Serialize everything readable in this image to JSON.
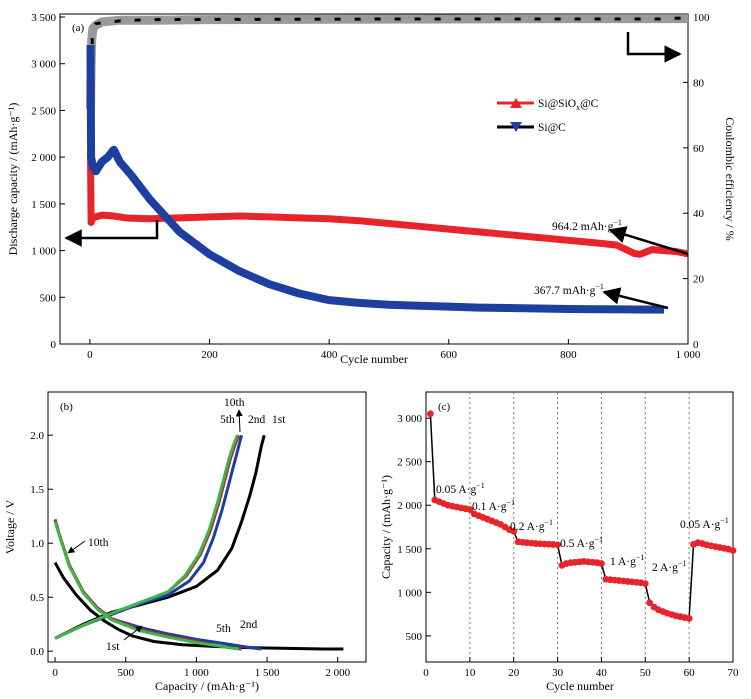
{
  "chart_data": [
    {
      "id": "a",
      "type": "line",
      "panel_label": "(a)",
      "xlabel": "Cycle number",
      "ylabel": "Discharge capacity / (mAh·g⁻¹)",
      "y2label": "Coulombic efficiency / %",
      "xlim": [
        -50,
        1000
      ],
      "ylim": [
        0,
        3500
      ],
      "y2lim": [
        0,
        100
      ],
      "xticks": [
        0,
        200,
        400,
        600,
        800,
        1000
      ],
      "xtick_labels": [
        "0",
        "200",
        "400",
        "600",
        "800",
        "1 000"
      ],
      "yticks": [
        0,
        500,
        1000,
        1500,
        2000,
        2500,
        3000,
        3500
      ],
      "ytick_labels": [
        "0",
        "500",
        "1 000",
        "1 500",
        "2 000",
        "2 500",
        "3 000",
        "3 500"
      ],
      "y2ticks": [
        0,
        20,
        40,
        60,
        80,
        100
      ],
      "y2tick_labels": [
        "0",
        "20",
        "40",
        "60",
        "80",
        "100"
      ],
      "legend": {
        "position": "right",
        "entries": [
          {
            "label_main": "Si@SiO",
            "label_sub": "x",
            "label_tail": "@C",
            "color": "#e8242b",
            "marker": "triangle-up"
          },
          {
            "label_main": "Si@C",
            "label_sub": "",
            "label_tail": "",
            "color": "#1f3fa0",
            "marker": "triangle-down"
          }
        ]
      },
      "series": [
        {
          "name": "Si@SiOx@C",
          "color": "#e8242b",
          "x": [
            1,
            2,
            5,
            10,
            20,
            40,
            60,
            100,
            150,
            200,
            250,
            300,
            350,
            400,
            450,
            500,
            550,
            600,
            650,
            700,
            750,
            800,
            850,
            880,
            900,
            910,
            920,
            940,
            960,
            980,
            1000
          ],
          "y": [
            2050,
            1300,
            1350,
            1360,
            1380,
            1370,
            1350,
            1340,
            1350,
            1360,
            1370,
            1360,
            1350,
            1340,
            1320,
            1290,
            1260,
            1230,
            1200,
            1170,
            1140,
            1110,
            1080,
            1060,
            1000,
            970,
            960,
            1010,
            1000,
            990,
            964
          ]
        },
        {
          "name": "Si@C",
          "color": "#1f3fa0",
          "x": [
            1,
            2,
            5,
            10,
            20,
            30,
            40,
            50,
            70,
            100,
            150,
            200,
            250,
            300,
            350,
            400,
            450,
            500,
            550,
            600,
            650,
            700,
            750,
            800,
            850,
            900,
            960
          ],
          "y": [
            3200,
            2000,
            1900,
            1850,
            1950,
            2000,
            2080,
            1950,
            1800,
            1550,
            1200,
            960,
            780,
            640,
            540,
            470,
            440,
            420,
            410,
            400,
            390,
            385,
            380,
            375,
            372,
            370,
            368
          ]
        },
        {
          "name": "Coulombic efficiency",
          "color": "#9a9a9a",
          "axis": "right",
          "x": [
            1,
            2,
            3,
            5,
            10,
            20,
            50,
            100,
            200,
            400,
            600,
            800,
            1000
          ],
          "y": [
            72,
            86,
            93,
            96.5,
            97.5,
            98.5,
            99,
            99,
            99.2,
            99.3,
            99.4,
            99.5,
            99.5
          ]
        }
      ],
      "ce_black_x": [
        1,
        4,
        10,
        50,
        100,
        300,
        500,
        700,
        900,
        960,
        980,
        1000
      ],
      "ce_black_y": [
        55,
        94,
        98,
        98.8,
        99.2,
        99.3,
        99.4,
        99.4,
        99.4,
        99.4,
        99.6,
        99.8
      ],
      "annotations": [
        {
          "text": "964.2 mAh·g",
          "sup": "−1"
        },
        {
          "text": "367.7 mAh·g",
          "sup": "−1"
        }
      ]
    },
    {
      "id": "b",
      "type": "line",
      "panel_label": "(b)",
      "xlabel": "Capacity / (mAh·g⁻¹)",
      "ylabel": "Voltage / V",
      "xlim": [
        -50,
        2200
      ],
      "ylim": [
        -0.1,
        2.4
      ],
      "xticks": [
        0,
        500,
        1000,
        1500,
        2000
      ],
      "xtick_labels": [
        "0",
        "500",
        "1 000",
        "1 500",
        "2 000"
      ],
      "yticks": [
        0.0,
        0.5,
        1.0,
        1.5,
        2.0
      ],
      "ytick_labels": [
        "0.0",
        "0.5",
        "1.0",
        "1.5",
        "2.0"
      ],
      "series": [
        {
          "name": "1st",
          "color": "#000000",
          "discharge_x": [
            0,
            60,
            150,
            250,
            350,
            450,
            550,
            700,
            900,
            1100,
            1300,
            1500,
            1700,
            1900,
            2040
          ],
          "discharge_y": [
            0.82,
            0.68,
            0.52,
            0.38,
            0.28,
            0.2,
            0.14,
            0.09,
            0.06,
            0.045,
            0.035,
            0.03,
            0.025,
            0.02,
            0.02
          ],
          "charge_x": [
            0,
            200,
            400,
            600,
            800,
            1000,
            1150,
            1250,
            1320,
            1380,
            1420,
            1460,
            1480
          ],
          "charge_y": [
            0.12,
            0.25,
            0.36,
            0.43,
            0.5,
            0.6,
            0.75,
            0.95,
            1.2,
            1.45,
            1.65,
            1.9,
            2.0
          ]
        },
        {
          "name": "2nd",
          "color": "#1f3fa0",
          "discharge_x": [
            0,
            30,
            100,
            200,
            300,
            400,
            600,
            800,
            1000,
            1200,
            1300,
            1400,
            1460
          ],
          "discharge_y": [
            1.22,
            1.08,
            0.8,
            0.55,
            0.4,
            0.3,
            0.22,
            0.16,
            0.11,
            0.07,
            0.05,
            0.03,
            0.02
          ],
          "charge_x": [
            0,
            200,
            400,
            600,
            800,
            950,
            1050,
            1120,
            1180,
            1230,
            1260,
            1290,
            1320
          ],
          "charge_y": [
            0.12,
            0.24,
            0.34,
            0.44,
            0.52,
            0.65,
            0.82,
            1.05,
            1.3,
            1.55,
            1.7,
            1.85,
            2.0
          ]
        },
        {
          "name": "5th",
          "color": "#b2282b",
          "discharge_x": [
            0,
            30,
            100,
            200,
            300,
            400,
            600,
            800,
            1000,
            1150,
            1250,
            1320
          ],
          "discharge_y": [
            1.22,
            1.08,
            0.8,
            0.55,
            0.4,
            0.3,
            0.2,
            0.14,
            0.09,
            0.05,
            0.03,
            0.02
          ],
          "charge_x": [
            0,
            200,
            400,
            600,
            800,
            930,
            1030,
            1100,
            1160,
            1200,
            1240,
            1270,
            1300
          ],
          "charge_y": [
            0.12,
            0.24,
            0.35,
            0.45,
            0.55,
            0.7,
            0.9,
            1.12,
            1.38,
            1.58,
            1.78,
            1.9,
            2.0
          ]
        },
        {
          "name": "10th",
          "color": "#3cb54a",
          "discharge_x": [
            0,
            30,
            100,
            200,
            300,
            400,
            600,
            800,
            1000,
            1150,
            1250,
            1300
          ],
          "discharge_y": [
            1.2,
            1.07,
            0.79,
            0.54,
            0.39,
            0.29,
            0.19,
            0.13,
            0.08,
            0.05,
            0.03,
            0.02
          ],
          "charge_x": [
            0,
            200,
            400,
            600,
            800,
            920,
            1020,
            1090,
            1150,
            1190,
            1230,
            1260,
            1290
          ],
          "charge_y": [
            0.12,
            0.24,
            0.35,
            0.45,
            0.55,
            0.7,
            0.9,
            1.12,
            1.38,
            1.58,
            1.78,
            1.9,
            2.0
          ]
        }
      ],
      "curve_labels": [
        "10th",
        "5th",
        "2nd",
        "1st",
        "10th",
        "5th",
        "2nd",
        "1st"
      ]
    },
    {
      "id": "c",
      "type": "scatter",
      "panel_label": "(c)",
      "xlabel": "Cycle number",
      "ylabel": "Capacity / (mAh·g⁻¹)",
      "xlim": [
        0,
        70
      ],
      "ylim": [
        200,
        3300
      ],
      "xticks": [
        0,
        10,
        20,
        30,
        40,
        50,
        60,
        70
      ],
      "xtick_labels": [
        "0",
        "10",
        "20",
        "30",
        "40",
        "50",
        "60",
        "70"
      ],
      "yticks": [
        500,
        1000,
        1500,
        2000,
        2500,
        3000
      ],
      "ytick_labels": [
        "500",
        "1 000",
        "1 500",
        "2 000",
        "2 500",
        "3 000"
      ],
      "vlines": [
        10,
        20,
        30,
        40,
        50,
        60
      ],
      "color": "#e8242b",
      "x": [
        1,
        2,
        3,
        4,
        5,
        6,
        7,
        8,
        9,
        10,
        11,
        12,
        13,
        14,
        15,
        16,
        17,
        18,
        19,
        20,
        21,
        22,
        23,
        24,
        25,
        26,
        27,
        28,
        29,
        30,
        31,
        32,
        33,
        34,
        35,
        36,
        37,
        38,
        39,
        40,
        41,
        42,
        43,
        44,
        45,
        46,
        47,
        48,
        49,
        50,
        51,
        52,
        53,
        54,
        55,
        56,
        57,
        58,
        59,
        60,
        61,
        62,
        63,
        64,
        65,
        66,
        67,
        68,
        69,
        70
      ],
      "y": [
        3050,
        2060,
        2040,
        2020,
        2000,
        1990,
        1980,
        1970,
        1960,
        1950,
        1900,
        1880,
        1860,
        1840,
        1820,
        1800,
        1780,
        1750,
        1720,
        1700,
        1580,
        1575,
        1570,
        1565,
        1560,
        1558,
        1555,
        1552,
        1550,
        1545,
        1310,
        1330,
        1340,
        1345,
        1350,
        1355,
        1350,
        1345,
        1340,
        1330,
        1150,
        1145,
        1140,
        1135,
        1130,
        1125,
        1120,
        1115,
        1110,
        1100,
        880,
        830,
        800,
        780,
        760,
        745,
        730,
        720,
        710,
        700,
        1550,
        1570,
        1560,
        1545,
        1535,
        1525,
        1515,
        1505,
        1495,
        1480
      ],
      "rate_labels": [
        {
          "text": "0.05 A·g",
          "sup": "−1"
        },
        {
          "text": "0.1 A·g",
          "sup": "−1"
        },
        {
          "text": "0.2 A·g",
          "sup": "−1"
        },
        {
          "text": "0.5 A·g",
          "sup": "−1"
        },
        {
          "text": "1 A·g",
          "sup": "−1"
        },
        {
          "text": "2 A·g",
          "sup": "−1"
        },
        {
          "text": "0.05 A·g",
          "sup": "−1"
        }
      ]
    }
  ]
}
